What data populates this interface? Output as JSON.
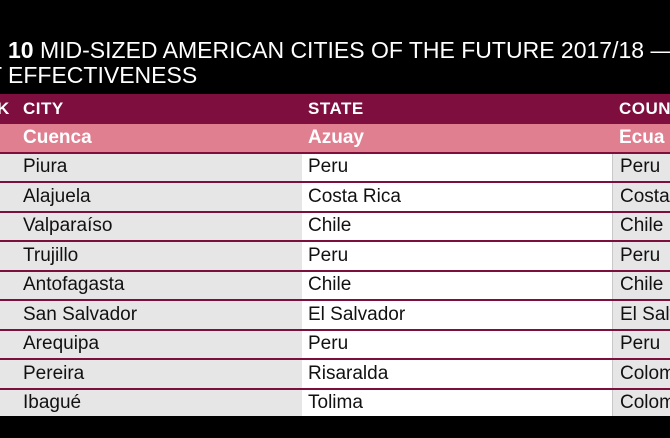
{
  "title": {
    "number": "10",
    "line1_rest": "MID-SIZED AMERICAN CITIES OF THE FUTURE 2017/18 —",
    "line2": "T EFFECTIVENESS"
  },
  "table": {
    "headers": {
      "rank": "K",
      "city": "CITY",
      "state": "STATE",
      "country": "COUN"
    },
    "rows": [
      {
        "city": "Cuenca",
        "state": "Azuay",
        "country": "Ecua",
        "highlight": true
      },
      {
        "city": "Piura",
        "state": "Peru",
        "country": "Peru"
      },
      {
        "city": "Alajuela",
        "state": "Costa Rica",
        "country": "Costa"
      },
      {
        "city": "Valparaíso",
        "state": "Chile",
        "country": "Chile"
      },
      {
        "city": "Trujillo",
        "state": "Peru",
        "country": "Peru"
      },
      {
        "city": "Antofagasta",
        "state": "Chile",
        "country": "Chile"
      },
      {
        "city": "San Salvador",
        "state": "El Salvador",
        "country": "El Salv"
      },
      {
        "city": "Arequipa",
        "state": "Peru",
        "country": "Peru"
      },
      {
        "city": "Pereira",
        "state": "Risaralda",
        "country": "Colom"
      },
      {
        "city": "Ibagué",
        "state": "Tolima",
        "country": "Colom"
      }
    ]
  },
  "colors": {
    "header_bg": "#7e0e3e",
    "highlight_bg": "#e07f90",
    "row_divider": "#7c0f3c",
    "shaded_column": "#e6e6e6"
  }
}
